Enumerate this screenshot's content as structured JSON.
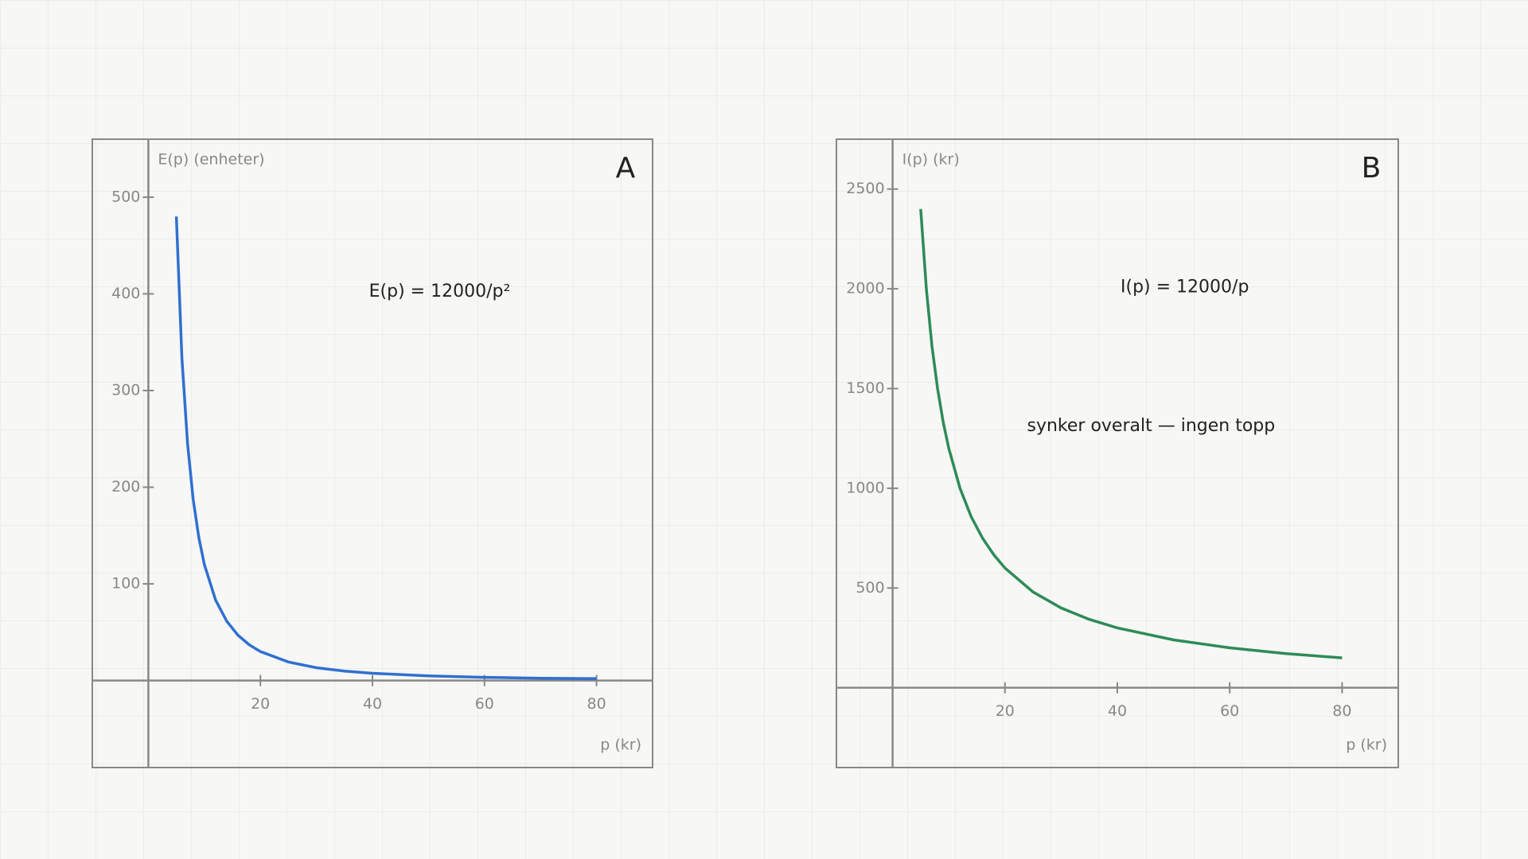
{
  "chart_data": [
    {
      "type": "line",
      "panel_label": "A",
      "y_label": "E(p) (enheter)",
      "x_label": "p (kr)",
      "annotations": [
        "E(p) = 12000/p²"
      ],
      "x": [
        5,
        6,
        7,
        8,
        9,
        10,
        12,
        14,
        16,
        18,
        20,
        25,
        30,
        35,
        40,
        50,
        60,
        70,
        80
      ],
      "values": [
        480,
        333.3,
        244.9,
        187.5,
        148.1,
        120,
        83.3,
        61.2,
        46.9,
        37.0,
        30,
        19.2,
        13.3,
        9.8,
        7.5,
        4.8,
        3.3,
        2.4,
        1.9
      ],
      "color": "#3070d0",
      "xlim": [
        -10,
        90
      ],
      "ylim": [
        -90,
        560
      ],
      "xticks": [
        20,
        40,
        60,
        80
      ],
      "yticks": [
        100,
        200,
        300,
        400,
        500
      ]
    },
    {
      "type": "line",
      "panel_label": "B",
      "y_label": "I(p) (kr)",
      "x_label": "p (kr)",
      "annotations": [
        "I(p) = 12000/p",
        "synker overalt — ingen topp"
      ],
      "x": [
        5,
        6,
        7,
        8,
        9,
        10,
        12,
        14,
        16,
        18,
        20,
        25,
        30,
        35,
        40,
        50,
        60,
        70,
        80
      ],
      "values": [
        2400,
        2000,
        1714,
        1500,
        1333,
        1200,
        1000,
        857,
        750,
        667,
        600,
        480,
        400,
        343,
        300,
        240,
        200,
        171,
        150
      ],
      "color": "#2e8b57",
      "xlim": [
        -10,
        90
      ],
      "ylim": [
        -400,
        2750
      ],
      "xticks": [
        20,
        40,
        60,
        80
      ],
      "yticks": [
        500,
        1000,
        1500,
        2000,
        2500
      ]
    }
  ]
}
